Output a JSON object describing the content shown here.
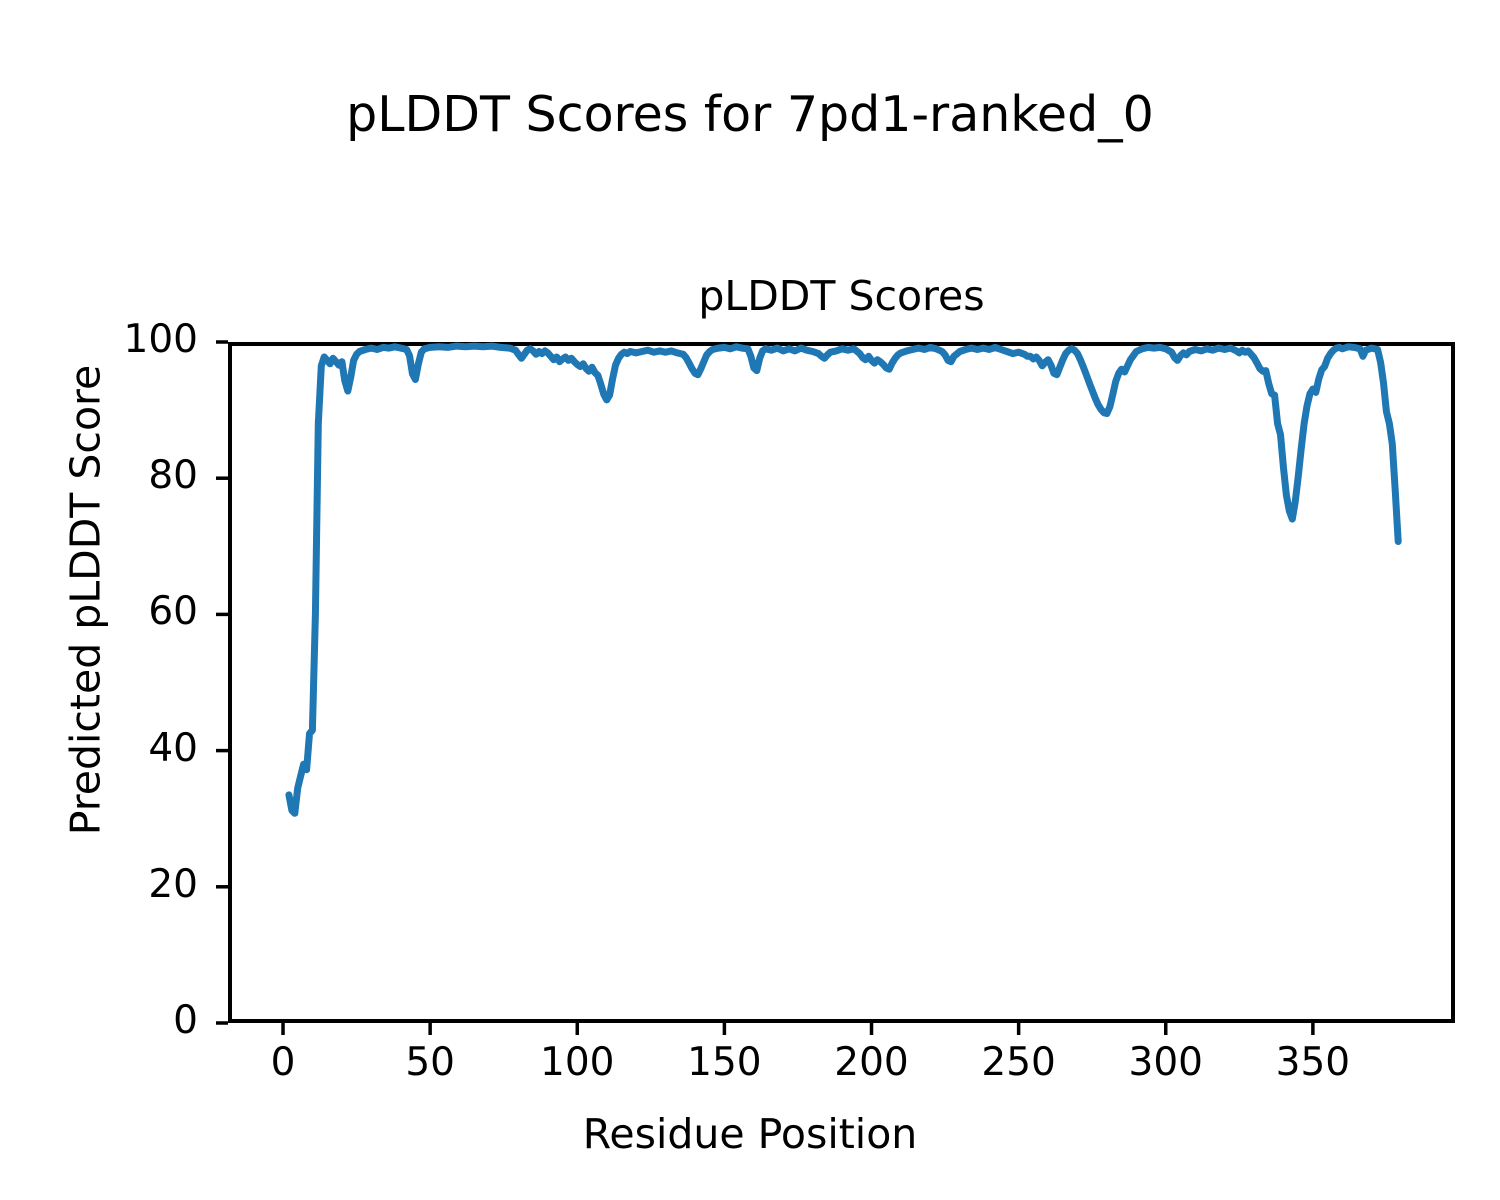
{
  "figure": {
    "suptitle": "pLDDT Scores for 7pd1-ranked_0"
  },
  "chart_data": {
    "type": "line",
    "title": "pLDDT Scores",
    "xlabel": "Residue Position",
    "ylabel": "Predicted pLDDT Score",
    "xlim": [
      -18.7,
      398.3
    ],
    "ylim": [
      0,
      100
    ],
    "x_ticks": [
      0,
      50,
      100,
      150,
      200,
      250,
      300,
      350
    ],
    "y_ticks": [
      0,
      20,
      40,
      60,
      80,
      100
    ],
    "grid": false,
    "legend": "none",
    "line_color": "#1f77b4",
    "series": [
      {
        "name": "pLDDT",
        "points": [
          [
            2,
            33.5
          ],
          [
            3,
            31.2
          ],
          [
            4,
            30.8
          ],
          [
            5,
            34.5
          ],
          [
            6,
            36.3
          ],
          [
            7,
            38
          ],
          [
            8,
            37.2
          ],
          [
            9,
            42.5
          ],
          [
            10,
            43
          ],
          [
            11,
            60
          ],
          [
            12,
            88
          ],
          [
            13,
            96.5
          ],
          [
            14,
            97.8
          ],
          [
            15,
            97.3
          ],
          [
            16,
            96.8
          ],
          [
            17,
            97.6
          ],
          [
            18,
            97.1
          ],
          [
            19,
            96.6
          ],
          [
            20,
            97.1
          ],
          [
            21,
            94.3
          ],
          [
            22,
            92.8
          ],
          [
            23,
            94.8
          ],
          [
            24,
            97.3
          ],
          [
            25,
            98.2
          ],
          [
            26,
            98.6
          ],
          [
            28,
            98.9
          ],
          [
            30,
            99.1
          ],
          [
            32,
            98.9
          ],
          [
            34,
            99.2
          ],
          [
            36,
            99.1
          ],
          [
            38,
            99.3
          ],
          [
            40,
            99.1
          ],
          [
            42,
            98.9
          ],
          [
            43,
            98
          ],
          [
            44,
            95.3
          ],
          [
            45,
            94.5
          ],
          [
            46,
            96.8
          ],
          [
            47,
            98.5
          ],
          [
            48,
            99
          ],
          [
            50,
            99.2
          ],
          [
            53,
            99.3
          ],
          [
            56,
            99.2
          ],
          [
            59,
            99.4
          ],
          [
            62,
            99.3
          ],
          [
            65,
            99.4
          ],
          [
            68,
            99.3
          ],
          [
            71,
            99.4
          ],
          [
            74,
            99.2
          ],
          [
            77,
            99.1
          ],
          [
            79,
            98.8
          ],
          [
            80,
            98.2
          ],
          [
            81,
            97.6
          ],
          [
            82,
            98.2
          ],
          [
            83,
            98.8
          ],
          [
            84,
            99
          ],
          [
            85,
            98.7
          ],
          [
            86,
            98.2
          ],
          [
            87,
            98.6
          ],
          [
            88,
            98.3
          ],
          [
            89,
            98.7
          ],
          [
            90,
            98.4
          ],
          [
            91,
            97.9
          ],
          [
            92,
            97.4
          ],
          [
            93,
            97.8
          ],
          [
            94,
            97.1
          ],
          [
            95,
            97.5
          ],
          [
            96,
            97.8
          ],
          [
            97,
            97.3
          ],
          [
            98,
            97.6
          ],
          [
            99,
            97.1
          ],
          [
            100,
            96.7
          ],
          [
            101,
            96.4
          ],
          [
            102,
            96.8
          ],
          [
            103,
            96.1
          ],
          [
            104,
            95.7
          ],
          [
            105,
            96.3
          ],
          [
            106,
            95.5
          ],
          [
            107,
            95.1
          ],
          [
            108,
            93.8
          ],
          [
            109,
            92.3
          ],
          [
            110,
            91.5
          ],
          [
            111,
            92.2
          ],
          [
            112,
            94.6
          ],
          [
            113,
            96.6
          ],
          [
            114,
            97.6
          ],
          [
            115,
            98.2
          ],
          [
            116,
            98.5
          ],
          [
            117,
            98.3
          ],
          [
            118,
            98.6
          ],
          [
            120,
            98.4
          ],
          [
            122,
            98.6
          ],
          [
            124,
            98.8
          ],
          [
            126,
            98.5
          ],
          [
            128,
            98.7
          ],
          [
            130,
            98.5
          ],
          [
            132,
            98.7
          ],
          [
            134,
            98.4
          ],
          [
            136,
            98.2
          ],
          [
            137,
            97.7
          ],
          [
            138,
            96.9
          ],
          [
            139,
            96.1
          ],
          [
            140,
            95.4
          ],
          [
            141,
            95.2
          ],
          [
            142,
            96.1
          ],
          [
            143,
            97.1
          ],
          [
            144,
            98.1
          ],
          [
            145,
            98.6
          ],
          [
            146,
            98.9
          ],
          [
            148,
            99.1
          ],
          [
            150,
            99.2
          ],
          [
            152,
            99
          ],
          [
            154,
            99.3
          ],
          [
            156,
            99.1
          ],
          [
            158,
            99
          ],
          [
            159,
            97.9
          ],
          [
            160,
            96.2
          ],
          [
            161,
            95.8
          ],
          [
            162,
            97.6
          ],
          [
            163,
            98.7
          ],
          [
            164,
            99
          ],
          [
            166,
            98.8
          ],
          [
            168,
            99.1
          ],
          [
            170,
            98.7
          ],
          [
            172,
            99
          ],
          [
            174,
            98.7
          ],
          [
            176,
            99.1
          ],
          [
            178,
            98.8
          ],
          [
            180,
            98.6
          ],
          [
            182,
            98.3
          ],
          [
            183,
            97.9
          ],
          [
            184,
            97.6
          ],
          [
            185,
            98.1
          ],
          [
            186,
            98.5
          ],
          [
            188,
            98.7
          ],
          [
            190,
            99
          ],
          [
            192,
            98.8
          ],
          [
            194,
            99
          ],
          [
            196,
            98.3
          ],
          [
            197,
            97.7
          ],
          [
            198,
            97.4
          ],
          [
            199,
            97.9
          ],
          [
            200,
            97.3
          ],
          [
            201,
            96.9
          ],
          [
            202,
            97.4
          ],
          [
            203,
            97.1
          ],
          [
            204,
            96.7
          ],
          [
            205,
            96.2
          ],
          [
            206,
            96
          ],
          [
            207,
            96.9
          ],
          [
            208,
            97.6
          ],
          [
            209,
            98.1
          ],
          [
            210,
            98.4
          ],
          [
            212,
            98.7
          ],
          [
            214,
            98.9
          ],
          [
            216,
            99.1
          ],
          [
            218,
            98.9
          ],
          [
            220,
            99.2
          ],
          [
            222,
            99
          ],
          [
            224,
            98.6
          ],
          [
            225,
            98.1
          ],
          [
            226,
            97.3
          ],
          [
            227,
            97.1
          ],
          [
            228,
            97.9
          ],
          [
            230,
            98.6
          ],
          [
            232,
            98.9
          ],
          [
            234,
            99.1
          ],
          [
            236,
            98.9
          ],
          [
            238,
            99.1
          ],
          [
            240,
            98.9
          ],
          [
            242,
            99.2
          ],
          [
            244,
            98.9
          ],
          [
            246,
            98.6
          ],
          [
            248,
            98.3
          ],
          [
            250,
            98.5
          ],
          [
            252,
            98.2
          ],
          [
            253,
            97.9
          ],
          [
            254,
            97.9
          ],
          [
            255,
            97.5
          ],
          [
            256,
            97.8
          ],
          [
            257,
            97.3
          ],
          [
            258,
            96.5
          ],
          [
            259,
            97
          ],
          [
            260,
            97.4
          ],
          [
            261,
            96.6
          ],
          [
            262,
            95.4
          ],
          [
            263,
            95.2
          ],
          [
            264,
            96.3
          ],
          [
            265,
            97.4
          ],
          [
            266,
            98.3
          ],
          [
            267,
            98.8
          ],
          [
            268,
            99
          ],
          [
            269,
            98.8
          ],
          [
            270,
            98.3
          ],
          [
            271,
            97.4
          ],
          [
            272,
            96.3
          ],
          [
            273,
            95.2
          ],
          [
            274,
            94
          ],
          [
            275,
            92.9
          ],
          [
            276,
            91.8
          ],
          [
            277,
            90.8
          ],
          [
            278,
            90.1
          ],
          [
            279,
            89.6
          ],
          [
            280,
            89.5
          ],
          [
            281,
            90.5
          ],
          [
            282,
            92.3
          ],
          [
            283,
            94.2
          ],
          [
            284,
            95.4
          ],
          [
            285,
            96
          ],
          [
            286,
            95.6
          ],
          [
            287,
            96.5
          ],
          [
            288,
            97.4
          ],
          [
            289,
            98
          ],
          [
            290,
            98.6
          ],
          [
            292,
            99
          ],
          [
            294,
            99.2
          ],
          [
            296,
            99.1
          ],
          [
            298,
            99.2
          ],
          [
            300,
            99
          ],
          [
            302,
            98.5
          ],
          [
            303,
            97.7
          ],
          [
            304,
            97.3
          ],
          [
            305,
            98
          ],
          [
            306,
            98.4
          ],
          [
            307,
            98.1
          ],
          [
            308,
            98.6
          ],
          [
            310,
            98.9
          ],
          [
            312,
            98.7
          ],
          [
            314,
            99
          ],
          [
            316,
            98.8
          ],
          [
            318,
            99.1
          ],
          [
            320,
            98.9
          ],
          [
            322,
            99.1
          ],
          [
            324,
            98.7
          ],
          [
            325,
            98.4
          ],
          [
            326,
            98.8
          ],
          [
            327,
            98.5
          ],
          [
            328,
            98.7
          ],
          [
            329,
            98.2
          ],
          [
            330,
            97.7
          ],
          [
            331,
            96.9
          ],
          [
            332,
            96.1
          ],
          [
            333,
            95.7
          ],
          [
            334,
            95.8
          ],
          [
            335,
            93.9
          ],
          [
            336,
            92.4
          ],
          [
            337,
            92.2
          ],
          [
            338,
            88
          ],
          [
            339,
            86.4
          ],
          [
            340,
            81.5
          ],
          [
            341,
            77.5
          ],
          [
            342,
            75.2
          ],
          [
            343,
            74
          ],
          [
            344,
            76.5
          ],
          [
            345,
            80.2
          ],
          [
            346,
            84.2
          ],
          [
            347,
            88
          ],
          [
            348,
            90.6
          ],
          [
            349,
            92.4
          ],
          [
            350,
            93.1
          ],
          [
            351,
            92.6
          ],
          [
            352,
            94.6
          ],
          [
            353,
            95.9
          ],
          [
            354,
            96.4
          ],
          [
            355,
            97.6
          ],
          [
            356,
            98.3
          ],
          [
            357,
            98.8
          ],
          [
            358,
            99.1
          ],
          [
            359,
            99.2
          ],
          [
            360,
            99
          ],
          [
            362,
            99.3
          ],
          [
            364,
            99.2
          ],
          [
            366,
            99
          ],
          [
            367,
            97.9
          ],
          [
            368,
            98.8
          ],
          [
            370,
            99.1
          ],
          [
            371,
            99
          ],
          [
            372,
            98.9
          ],
          [
            373,
            97
          ],
          [
            374,
            94
          ],
          [
            375,
            89.8
          ],
          [
            376,
            88
          ],
          [
            377,
            85
          ],
          [
            378,
            78
          ],
          [
            379,
            70.7
          ]
        ]
      }
    ]
  }
}
